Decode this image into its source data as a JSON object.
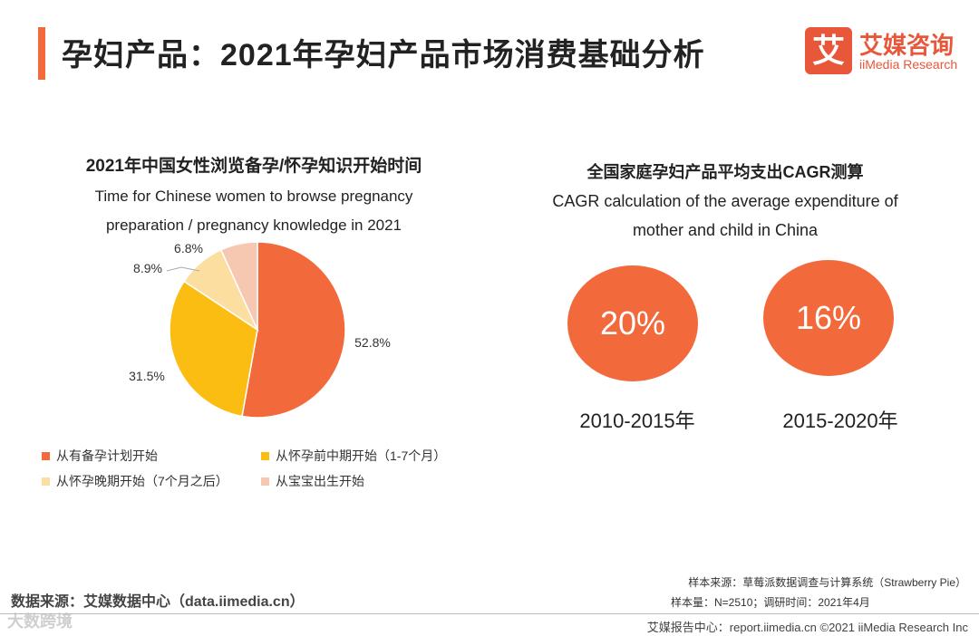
{
  "header": {
    "title": "孕妇产品：2021年孕妇产品市场消费基础分析",
    "logo_mark": "艾",
    "logo_cn": "艾媒咨询",
    "logo_en": "iiMedia Research"
  },
  "left_chart": {
    "title_cn": "2021年中国女性浏览备孕/怀孕知识开始时间",
    "title_en": "Time for Chinese women to browse pregnancy preparation / pregnancy knowledge in 2021"
  },
  "chart_data": {
    "type": "pie",
    "title": "2021年中国女性浏览备孕/怀孕知识开始时间",
    "categories": [
      "从有备孕计划开始",
      "从怀孕前中期开始（1-7个月）",
      "从怀孕晚期开始（7个月之后）",
      "从宝宝出生开始"
    ],
    "values": [
      52.8,
      31.5,
      8.9,
      6.8
    ],
    "labels": [
      "52.8%",
      "31.5%",
      "8.9%",
      "6.8%"
    ],
    "colors": [
      "#f26a3c",
      "#fbbd12",
      "#fcdfa0",
      "#f6c8b2"
    ],
    "legend_position": "bottom"
  },
  "right_panel": {
    "title_cn": "全国家庭孕妇产品平均支出CAGR测算",
    "title_en": "CAGR calculation of the average expenditure of mother and child in China",
    "items": [
      {
        "value": "20%",
        "period": "2010-2015年"
      },
      {
        "value": "16%",
        "period": "2015-2020年"
      }
    ]
  },
  "footer": {
    "data_source": "数据来源：艾媒数据中心（data.iimedia.cn）",
    "watermark": "大数跨境",
    "sample_source": "样本来源：草莓派数据调查与计算系统（Strawberry Pie）",
    "sample_size": "样本量：N=2510；调研时间：2021年4月",
    "report": "艾媒报告中心：report.iimedia.cn ©2021 iiMedia Research Inc"
  }
}
